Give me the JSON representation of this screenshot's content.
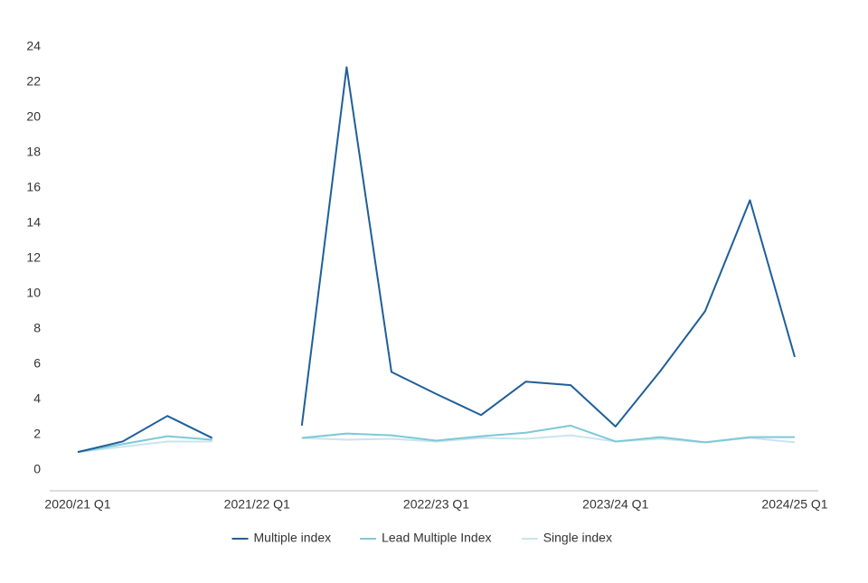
{
  "chart_data": {
    "type": "line",
    "categories": [
      "2020/21 Q1",
      null,
      null,
      null,
      "2021/22 Q1",
      null,
      null,
      null,
      "2022/23 Q1",
      null,
      null,
      null,
      "2023/24 Q1",
      null,
      null,
      null,
      "2024/25 Q1"
    ],
    "series": [
      {
        "name": "Multiple index",
        "color": "#1f5f99",
        "values": [
          1.0,
          1.6,
          3.05,
          1.8,
          null,
          2.5,
          22.85,
          5.55,
          4.3,
          3.1,
          5.0,
          4.8,
          2.45,
          5.6,
          9.0,
          15.3,
          6.4
        ]
      },
      {
        "name": "Lead Multiple Index",
        "color": "#7ec8d8",
        "values": [
          1.0,
          1.45,
          1.9,
          1.7,
          null,
          1.8,
          2.05,
          1.95,
          1.65,
          1.9,
          2.1,
          2.5,
          1.6,
          1.85,
          1.55,
          1.85,
          1.85
        ]
      },
      {
        "name": "Single index",
        "color": "#c9e4ef",
        "values": [
          1.0,
          1.3,
          1.6,
          1.6,
          null,
          1.8,
          1.7,
          1.75,
          1.6,
          1.8,
          1.75,
          1.95,
          1.6,
          1.75,
          1.55,
          1.8,
          1.55
        ]
      }
    ],
    "ylim": [
      -1.2,
      24
    ],
    "yticks": [
      0,
      2,
      4,
      6,
      8,
      10,
      12,
      14,
      16,
      18,
      20,
      22,
      24
    ],
    "grid": false,
    "legend": "bottom"
  }
}
